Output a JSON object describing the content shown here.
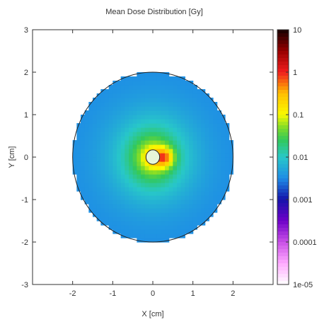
{
  "chart_data": {
    "type": "heatmap",
    "title": "Mean Dose Distribution [Gy]",
    "xlabel": "X [cm]",
    "ylabel": "Y [cm]",
    "xlim": [
      -3,
      3
    ],
    "ylim": [
      -3,
      3
    ],
    "x_ticks": [
      "-2",
      "-1",
      "0",
      "1",
      "2"
    ],
    "y_ticks": [
      "3",
      "2",
      "1",
      "0",
      "-1",
      "-2",
      "-3"
    ],
    "colorbar": {
      "scale": "log",
      "range": [
        1e-05,
        10
      ],
      "tick_labels": [
        "10",
        "1",
        "0.1",
        "0.01",
        "0.001",
        "0.0001",
        "1e-05"
      ]
    },
    "field": {
      "phantom_radius_cm": 2.0,
      "source_center_cm": [
        0.0,
        0.0
      ],
      "source_radius_cm": 0.17,
      "hotspot_center_cm": [
        0.3,
        0.0
      ],
      "peak_dose_gy": 10,
      "edge_dose_gy": 0.003,
      "outside": "white"
    },
    "grid": false
  }
}
